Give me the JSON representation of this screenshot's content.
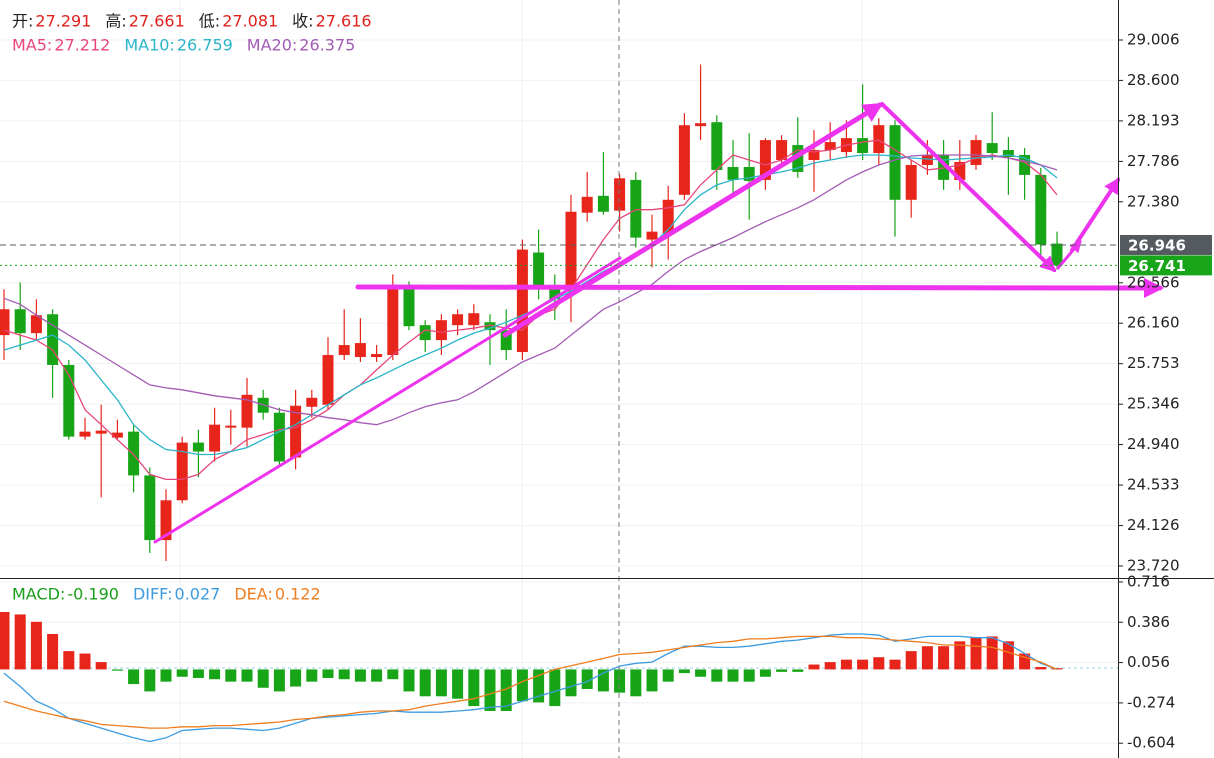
{
  "chart_data": [
    {
      "type": "candlestick",
      "legend": [
        {
          "label": "开:",
          "value": 27.291
        },
        {
          "label": "高:",
          "value": 27.661
        },
        {
          "label": "低:",
          "value": 27.081
        },
        {
          "label": "收:",
          "value": 27.616
        }
      ],
      "legend_value_color": "#e0201b",
      "up_color": "#e8251b",
      "down_color": "#17a517",
      "open": [
        26.04,
        26.3,
        26.06,
        26.25,
        25.74,
        25.02,
        25.05,
        25.01,
        25.07,
        24.63,
        23.98,
        24.38,
        24.96,
        24.87,
        25.11,
        25.11,
        25.41,
        25.26,
        24.81,
        25.32,
        25.34,
        25.84,
        25.82,
        25.82,
        25.84,
        26.53,
        26.14,
        25.99,
        26.14,
        26.14,
        26.17,
        26.09,
        25.87,
        26.87,
        26.52,
        26.5,
        27.27,
        27.44,
        27.291,
        27.6,
        27.0,
        27.05,
        27.45,
        28.14,
        28.18,
        27.73,
        27.73,
        27.6,
        27.8,
        27.95,
        27.8,
        27.9,
        27.88,
        28.02,
        27.87,
        28.15,
        27.4,
        27.75,
        27.85,
        27.6,
        27.75,
        27.97,
        27.9,
        27.85,
        27.65,
        26.96
      ],
      "high": [
        26.5,
        26.57,
        26.4,
        26.3,
        25.79,
        25.21,
        25.34,
        25.19,
        25.14,
        24.71,
        24.49,
        25.02,
        25.09,
        25.31,
        25.29,
        25.61,
        25.49,
        25.31,
        25.49,
        25.49,
        26.02,
        26.3,
        26.21,
        25.94,
        26.65,
        26.58,
        26.19,
        26.25,
        26.3,
        26.35,
        26.25,
        26.3,
        27.0,
        27.1,
        26.65,
        27.45,
        27.68,
        27.88,
        27.661,
        27.68,
        27.25,
        27.54,
        28.27,
        28.76,
        28.25,
        28.0,
        28.07,
        28.02,
        28.05,
        28.23,
        28.1,
        28.18,
        28.2,
        28.56,
        28.22,
        28.2,
        27.8,
        28.0,
        28.0,
        28.0,
        28.05,
        28.28,
        28.03,
        27.92,
        27.72,
        27.08
      ],
      "low": [
        25.79,
        25.89,
        25.99,
        25.41,
        24.99,
        24.99,
        24.41,
        24.99,
        24.46,
        23.85,
        23.77,
        24.35,
        24.61,
        24.77,
        24.94,
        24.92,
        25.19,
        24.71,
        24.69,
        25.21,
        25.29,
        25.79,
        25.77,
        25.77,
        25.79,
        26.09,
        25.87,
        25.84,
        26.04,
        26.09,
        25.74,
        25.79,
        25.79,
        26.4,
        26.19,
        26.17,
        27.18,
        27.25,
        27.081,
        26.92,
        26.72,
        26.8,
        27.4,
        28.0,
        27.5,
        27.45,
        27.2,
        27.5,
        27.75,
        27.62,
        27.48,
        27.8,
        27.82,
        27.8,
        27.75,
        27.03,
        27.22,
        27.65,
        27.5,
        27.5,
        27.7,
        27.8,
        27.45,
        27.4,
        26.8,
        26.7
      ],
      "close": [
        26.3,
        26.06,
        26.24,
        25.74,
        25.02,
        25.07,
        25.08,
        25.06,
        24.63,
        23.98,
        24.38,
        24.96,
        24.87,
        25.14,
        25.13,
        25.44,
        25.26,
        24.77,
        25.33,
        25.41,
        25.84,
        25.94,
        25.96,
        25.85,
        26.53,
        26.13,
        25.99,
        26.19,
        26.25,
        26.26,
        26.09,
        25.89,
        26.9,
        26.52,
        26.4,
        27.28,
        27.43,
        27.28,
        27.616,
        27.02,
        27.08,
        27.4,
        28.15,
        28.17,
        27.7,
        27.6,
        27.59,
        28.0,
        28.0,
        27.68,
        27.9,
        27.98,
        28.02,
        27.87,
        28.15,
        27.4,
        27.75,
        27.85,
        27.6,
        27.78,
        28.0,
        27.87,
        27.83,
        27.65,
        26.95,
        26.741
      ],
      "ma": [
        {
          "label": "MA5:",
          "value": 27.212,
          "color": "#e8467a",
          "values": [
            26.09,
            26.04,
            25.99,
            25.89,
            25.64,
            25.29,
            25.14,
            24.99,
            24.84,
            24.64,
            24.59,
            24.59,
            24.64,
            24.79,
            24.87,
            24.99,
            25.04,
            25.09,
            25.11,
            25.19,
            25.29,
            25.44,
            25.54,
            25.69,
            25.84,
            25.97,
            26.09,
            26.07,
            26.09,
            26.11,
            26.14,
            26.11,
            26.09,
            26.24,
            26.3,
            26.5,
            26.75,
            27.0,
            27.212,
            27.3,
            27.3,
            27.32,
            27.35,
            27.55,
            27.7,
            27.85,
            27.8,
            27.75,
            27.8,
            27.9,
            27.88,
            27.9,
            27.95,
            27.98,
            28.0,
            27.9,
            27.8,
            27.7,
            27.72,
            27.75,
            27.82,
            27.85,
            27.82,
            27.78,
            27.65,
            27.45
          ]
        },
        {
          "label": "MA10:",
          "value": 26.759,
          "color": "#2ab5c9",
          "values": [
            25.89,
            25.94,
            25.99,
            26.04,
            25.94,
            25.79,
            25.59,
            25.39,
            25.14,
            24.99,
            24.89,
            24.87,
            24.84,
            24.84,
            24.87,
            24.91,
            24.99,
            25.07,
            25.14,
            25.24,
            25.34,
            25.44,
            25.54,
            25.61,
            25.69,
            25.77,
            25.84,
            25.91,
            25.99,
            26.06,
            26.11,
            26.17,
            26.24,
            26.31,
            26.4,
            26.48,
            26.58,
            26.68,
            26.759,
            26.85,
            26.95,
            27.1,
            27.3,
            27.45,
            27.55,
            27.6,
            27.62,
            27.65,
            27.68,
            27.72,
            27.77,
            27.8,
            27.83,
            27.85,
            27.85,
            27.84,
            27.82,
            27.81,
            27.8,
            27.81,
            27.82,
            27.83,
            27.85,
            27.82,
            27.75,
            27.62
          ]
        },
        {
          "label": "MA20:",
          "value": 26.375,
          "color": "#a35bb5",
          "values": [
            26.41,
            26.35,
            26.24,
            26.14,
            26.04,
            25.94,
            25.84,
            25.74,
            25.64,
            25.54,
            25.51,
            25.49,
            25.46,
            25.43,
            25.41,
            25.39,
            25.34,
            25.29,
            25.26,
            25.24,
            25.21,
            25.19,
            25.16,
            25.14,
            25.19,
            25.26,
            25.32,
            25.36,
            25.39,
            25.47,
            25.57,
            25.67,
            25.77,
            25.84,
            25.91,
            26.04,
            26.17,
            26.3,
            26.375,
            26.46,
            26.55,
            26.68,
            26.8,
            26.88,
            26.95,
            27.02,
            27.1,
            27.18,
            27.25,
            27.32,
            27.4,
            27.5,
            27.6,
            27.68,
            27.75,
            27.8,
            27.84,
            27.85,
            27.85,
            27.85,
            27.85,
            27.84,
            27.82,
            27.79,
            27.75,
            27.7
          ]
        }
      ],
      "ylim": [
        23.599,
        29.408
      ],
      "yticks": [
        29.006,
        {
          "value": 28.6,
          "label": "28.600"
        },
        28.193,
        27.786,
        {
          "value": 27.38,
          "label": "27.380"
        },
        26.566,
        {
          "value": 26.16,
          "label": "26.160"
        },
        25.753,
        25.346,
        {
          "value": 24.94,
          "label": "24.940"
        },
        24.533,
        24.126,
        {
          "value": 23.72,
          "label": "23.720"
        }
      ],
      "price_lines": [
        {
          "value": 26.946,
          "color": "#555a60"
        },
        {
          "value": 26.741,
          "color": "#19a519"
        }
      ],
      "grid": true
    },
    {
      "type": "macd",
      "histogram": {
        "label": "MACD:",
        "value": -0.19,
        "value_label": "-0.190",
        "color": "#1a9e1a",
        "up_color": "#e8251b",
        "down_color": "#17a517",
        "values": [
          0.47,
          0.45,
          0.39,
          0.29,
          0.15,
          0.13,
          0.06,
          -0.01,
          -0.12,
          -0.18,
          -0.1,
          -0.06,
          -0.07,
          -0.08,
          -0.1,
          -0.1,
          -0.15,
          -0.18,
          -0.14,
          -0.1,
          -0.07,
          -0.08,
          -0.1,
          -0.1,
          -0.08,
          -0.18,
          -0.22,
          -0.22,
          -0.24,
          -0.3,
          -0.34,
          -0.34,
          -0.26,
          -0.27,
          -0.3,
          -0.22,
          -0.16,
          -0.18,
          -0.19,
          -0.22,
          -0.18,
          -0.1,
          -0.03,
          -0.06,
          -0.1,
          -0.1,
          -0.1,
          -0.06,
          -0.02,
          -0.02,
          0.04,
          0.06,
          0.08,
          0.08,
          0.1,
          0.08,
          0.15,
          0.19,
          0.19,
          0.23,
          0.26,
          0.27,
          0.23,
          0.13,
          0.02,
          0.01
        ]
      },
      "lines": [
        {
          "label": "DIFF:",
          "value": 0.027,
          "color": "#3d9be0",
          "values": [
            -0.03,
            -0.14,
            -0.26,
            -0.32,
            -0.4,
            -0.44,
            -0.48,
            -0.52,
            -0.56,
            -0.59,
            -0.56,
            -0.5,
            -0.49,
            -0.48,
            -0.48,
            -0.49,
            -0.5,
            -0.48,
            -0.44,
            -0.4,
            -0.39,
            -0.38,
            -0.37,
            -0.36,
            -0.34,
            -0.35,
            -0.35,
            -0.35,
            -0.34,
            -0.33,
            -0.31,
            -0.3,
            -0.26,
            -0.22,
            -0.18,
            -0.14,
            -0.1,
            -0.03,
            0.027,
            0.05,
            0.06,
            0.13,
            0.19,
            0.19,
            0.18,
            0.18,
            0.19,
            0.21,
            0.23,
            0.24,
            0.26,
            0.28,
            0.29,
            0.29,
            0.28,
            0.23,
            0.25,
            0.27,
            0.27,
            0.27,
            0.26,
            0.26,
            0.21,
            0.13,
            0.05,
            0.0
          ]
        },
        {
          "label": "DEA:",
          "value": 0.122,
          "color": "#ef7d1f",
          "values": [
            -0.26,
            -0.3,
            -0.34,
            -0.37,
            -0.4,
            -0.42,
            -0.45,
            -0.46,
            -0.47,
            -0.48,
            -0.48,
            -0.47,
            -0.47,
            -0.46,
            -0.46,
            -0.45,
            -0.44,
            -0.43,
            -0.41,
            -0.4,
            -0.38,
            -0.37,
            -0.35,
            -0.34,
            -0.34,
            -0.33,
            -0.3,
            -0.28,
            -0.26,
            -0.24,
            -0.2,
            -0.16,
            -0.1,
            -0.05,
            0.0,
            0.03,
            0.06,
            0.09,
            0.122,
            0.13,
            0.14,
            0.16,
            0.18,
            0.2,
            0.22,
            0.23,
            0.25,
            0.25,
            0.26,
            0.27,
            0.27,
            0.27,
            0.26,
            0.26,
            0.25,
            0.24,
            0.23,
            0.22,
            0.2,
            0.2,
            0.19,
            0.18,
            0.14,
            0.1,
            0.06,
            0.0
          ]
        }
      ],
      "ylim": [
        -0.725,
        0.732
      ],
      "yticks": [
        0.716,
        0.386,
        0.056,
        -0.274,
        -0.604
      ]
    }
  ]
}
